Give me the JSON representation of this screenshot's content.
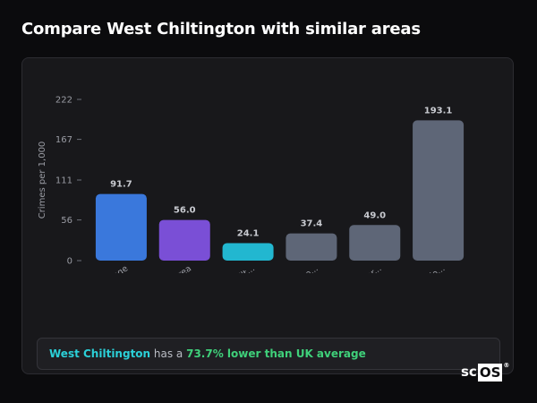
{
  "page": {
    "title": "Compare West Chiltington with similar areas"
  },
  "chart_data": {
    "type": "bar",
    "ylabel": "Crimes per 1,000",
    "ylim": [
      0,
      222
    ],
    "yticks": [
      0,
      56,
      111,
      167,
      222
    ],
    "categories": [
      "UK Average",
      "Local Area",
      "West Chilt...",
      "Barrow upo...",
      "Church War...",
      "Llandrindo..."
    ],
    "values": [
      91.7,
      56.0,
      24.1,
      37.4,
      49.0,
      193.1
    ],
    "value_labels": [
      "91.7",
      "56.0",
      "24.1",
      "37.4",
      "49.0",
      "193.1"
    ],
    "colors": [
      "#3a78dc",
      "#7a4fd6",
      "#22b7d0",
      "#5e6677",
      "#5e6677",
      "#5e6677"
    ],
    "grid": false,
    "legend": "none"
  },
  "summary": {
    "area": "West Chiltington",
    "middle": " has a ",
    "highlight": "73.7% lower than UK average",
    "colors": {
      "area": "#2bd0d8",
      "highlight": "#3fd07a"
    }
  },
  "logo": {
    "left": "sc",
    "boxed": "OS",
    "reg": "®"
  }
}
